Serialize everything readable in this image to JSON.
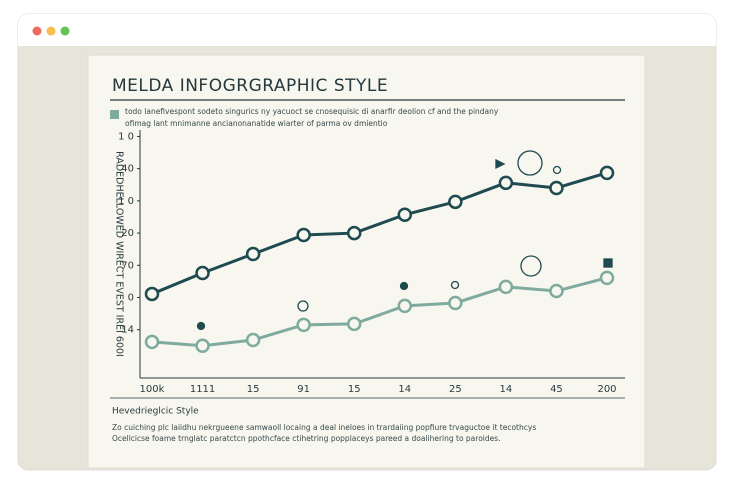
{
  "chart_data": {
    "type": "line",
    "title": "MELDA INFOGRGRAPHIC STYLE",
    "subtitle": [
      "todo lanefivespont sodeto singurics ny yacuoct se cnosequisic di anarfir deolion cf and the pindany",
      "ofimag lant mnimanne ancianonanatide wiarter of parma ov dmientio"
    ],
    "y_label": "RADEDHELLOWED WIRECT EVEST IREI 600I",
    "categories": [
      "100k",
      "1111",
      "15",
      "91",
      "15",
      "14",
      "25",
      "14",
      "45",
      "200"
    ],
    "series": [
      {
        "color": "#1f4a4f",
        "values": [
          2.11,
          2.76,
          3.35,
          3.94,
          4.0,
          4.57,
          4.97,
          5.56,
          5.4,
          5.87
        ]
      },
      {
        "color": "#7fab9f",
        "values": [
          0.62,
          0.5,
          0.68,
          1.15,
          1.18,
          1.74,
          1.83,
          2.33,
          2.2,
          2.61
        ]
      }
    ],
    "ylim": [
      -0.5,
      7.2
    ],
    "yticks": [
      {
        "value": 1,
        "label": "14"
      },
      {
        "value": 2,
        "label": "0"
      },
      {
        "value": 3,
        "label": "70"
      },
      {
        "value": 4,
        "label": "20"
      },
      {
        "value": 5,
        "label": "1 0"
      },
      {
        "value": 6,
        "label": "40"
      },
      {
        "value": 7,
        "label": "1 0"
      }
    ],
    "footer_title": "Hevedrieglcic Style",
    "footer": [
      "Zo cuiching plc laiidhu nekrgueene samwaoll locaing a deal ineloes in trardaiing popfiure trvaguctoe it tecothcys",
      "Ocellcicse foame trnglatc paratctcn ppothcface ctihetring popplaceys pareed a doalihering to paroides."
    ]
  }
}
